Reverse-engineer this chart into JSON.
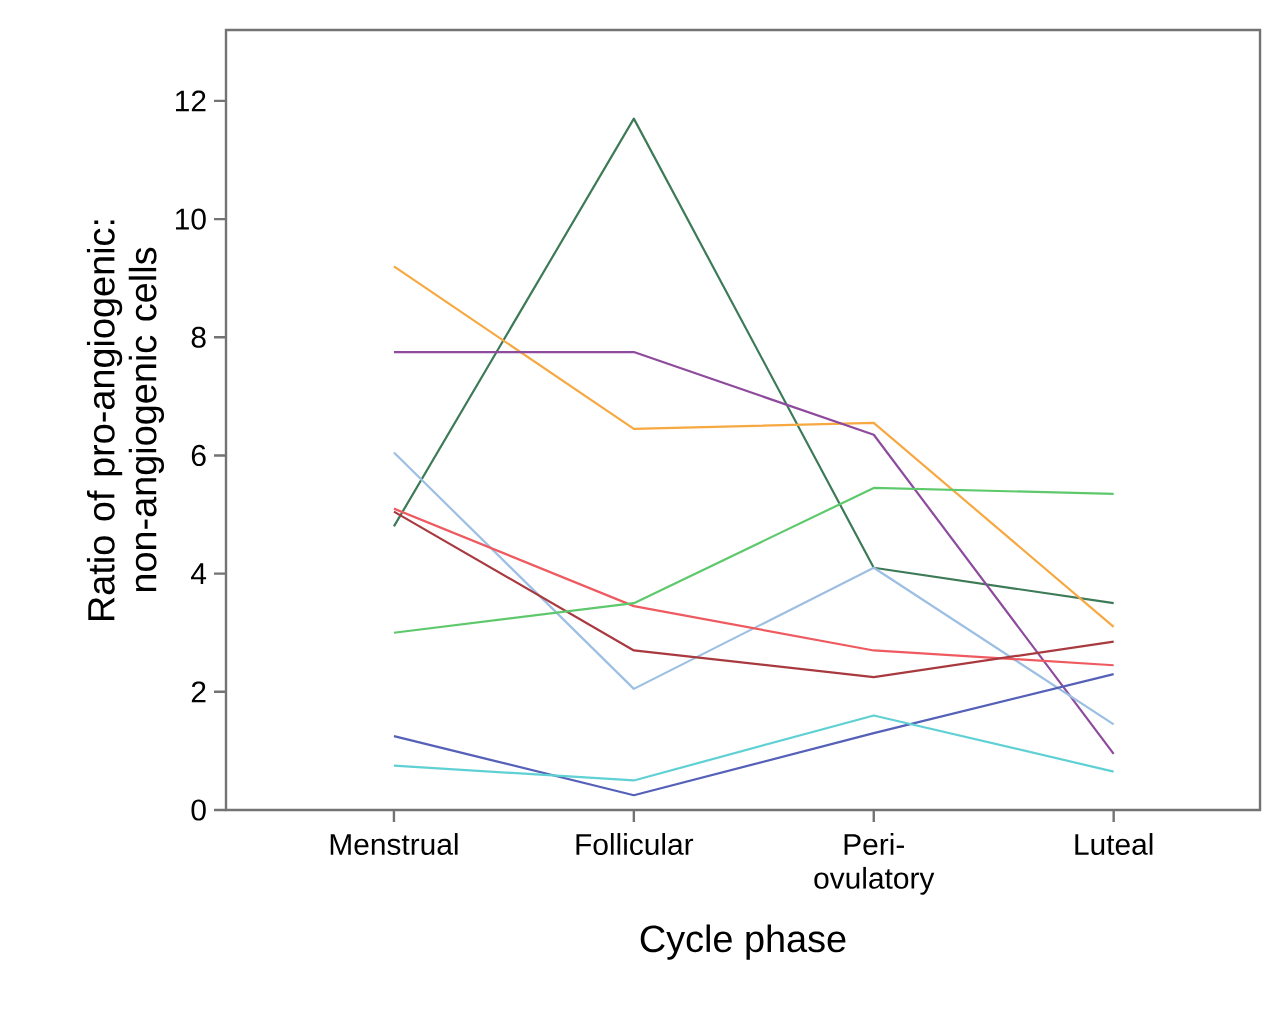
{
  "chart_data": {
    "type": "line",
    "xlabel": "Cycle phase",
    "ylabel": "Ratio of pro-angiogenic: non-angiogenic cells",
    "categories": [
      "Menstrual",
      "Follicular",
      "Peri-ovulatory",
      "Luteal"
    ],
    "ylim": [
      0,
      13.2
    ],
    "yticks": [
      0,
      2,
      4,
      6,
      8,
      10,
      12
    ],
    "grid": false,
    "marker": "none",
    "line_style": "solid",
    "series": [
      {
        "color": "#3d7a57",
        "values": [
          4.8,
          11.7,
          4.1,
          3.5
        ]
      },
      {
        "color": "#f7a840",
        "values": [
          9.2,
          6.45,
          6.55,
          3.1
        ]
      },
      {
        "color": "#8e4a9c",
        "values": [
          7.75,
          7.75,
          6.35,
          0.95
        ]
      },
      {
        "color": "#9cbfe3",
        "values": [
          6.05,
          2.05,
          4.1,
          1.45
        ]
      },
      {
        "color": "#ee5a60",
        "values": [
          5.1,
          3.45,
          2.7,
          2.45
        ]
      },
      {
        "color": "#a8393f",
        "values": [
          5.05,
          2.7,
          2.25,
          2.85
        ]
      },
      {
        "color": "#5ec96c",
        "values": [
          3.0,
          3.5,
          5.45,
          5.35
        ]
      },
      {
        "color": "#5560b8",
        "values": [
          1.25,
          0.25,
          1.3,
          2.3
        ]
      },
      {
        "color": "#5fd0d3",
        "values": [
          0.75,
          0.5,
          1.6,
          0.65
        ]
      }
    ]
  }
}
